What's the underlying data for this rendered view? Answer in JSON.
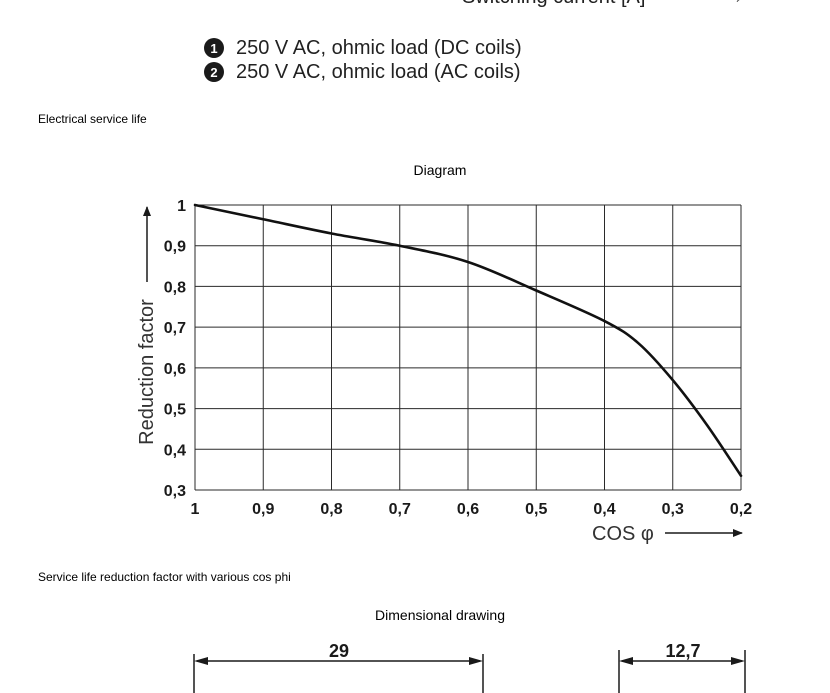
{
  "header_fragment": {
    "text": "Switching current [A]",
    "trailing_mark": "→"
  },
  "legend": {
    "items": [
      {
        "badge": "1",
        "label": "250 V AC, ohmic load (DC coils)"
      },
      {
        "badge": "2",
        "label": "250 V AC, ohmic load (AC coils)"
      }
    ]
  },
  "sections": {
    "electrical_service_life": "Electrical service life",
    "diagram_title": "Diagram",
    "diagram_caption": "Service life reduction factor with various cos phi",
    "dimensional_title": "Dimensional drawing"
  },
  "chart_data": {
    "type": "line",
    "title": "",
    "xlabel": "COS φ",
    "ylabel": "Reduction factor",
    "x_ticks": [
      "1",
      "0,9",
      "0,8",
      "0,7",
      "0,6",
      "0,5",
      "0,4",
      "0,3",
      "0,2"
    ],
    "y_ticks": [
      "0,3",
      "0,4",
      "0,5",
      "0,6",
      "0,7",
      "0,8",
      "0,9",
      "1"
    ],
    "xlim": [
      1,
      0.2
    ],
    "ylim": [
      0.3,
      1
    ],
    "x_reversed": true,
    "grid": true,
    "series": [
      {
        "x": [
          1.0,
          0.9,
          0.8,
          0.7,
          0.6,
          0.5,
          0.4,
          0.35,
          0.3,
          0.25,
          0.2
        ],
        "y": [
          1.0,
          0.965,
          0.93,
          0.9,
          0.86,
          0.79,
          0.715,
          0.66,
          0.57,
          0.46,
          0.335
        ]
      }
    ]
  },
  "dimensions": {
    "width_label": "29",
    "depth_label": "12,7"
  }
}
